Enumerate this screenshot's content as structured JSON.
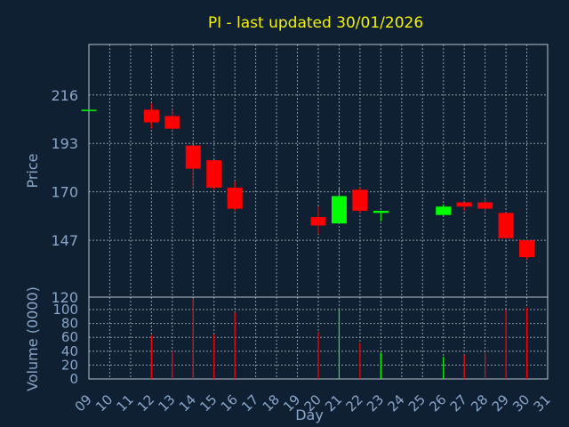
{
  "chart_data": {
    "type": "candlestick",
    "title": "PI - last updated 30/01/2026",
    "xlabel": "Day",
    "ylabel": "Price",
    "volume_label": "Volume (0000)",
    "x_ticks": [
      "09",
      "10",
      "11",
      "12",
      "13",
      "14",
      "15",
      "16",
      "17",
      "18",
      "19",
      "20",
      "21",
      "22",
      "23",
      "24",
      "25",
      "26",
      "27",
      "28",
      "29",
      "30",
      "31"
    ],
    "price_ticks": [
      147,
      170,
      193,
      216
    ],
    "price_tick_labels": [
      "147",
      "170",
      "193",
      "216"
    ],
    "price_axis_min_label": "120",
    "price_ylim": [
      120,
      240
    ],
    "volume_ticks": [
      0,
      20,
      40,
      60,
      80,
      100
    ],
    "volume_tick_labels": [
      "0",
      "20",
      "40",
      "60",
      "80",
      "100"
    ],
    "volume_ylim": [
      0,
      118
    ],
    "grid": true,
    "up_color": "#00ff00",
    "down_color": "#ff0000",
    "candles": [
      {
        "day": "09",
        "open": 209,
        "high": 209,
        "low": 209,
        "close": 209,
        "volume": 0
      },
      {
        "day": "12",
        "open": 209,
        "high": 212,
        "low": 200,
        "close": 203,
        "volume": 63
      },
      {
        "day": "13",
        "open": 206,
        "high": 209,
        "low": 199,
        "close": 200,
        "volume": 40
      },
      {
        "day": "14",
        "open": 192,
        "high": 192,
        "low": 172,
        "close": 181,
        "volume": 116
      },
      {
        "day": "15",
        "open": 185,
        "high": 185,
        "low": 171,
        "close": 172,
        "volume": 64
      },
      {
        "day": "16",
        "open": 172,
        "high": 175,
        "low": 161,
        "close": 162,
        "volume": 96
      },
      {
        "day": "20",
        "open": 158,
        "high": 163,
        "low": 150,
        "close": 154,
        "volume": 68
      },
      {
        "day": "21",
        "open": 155,
        "high": 172,
        "low": 155,
        "close": 168,
        "volume": 100
      },
      {
        "day": "22",
        "open": 171,
        "high": 172,
        "low": 160,
        "close": 161,
        "volume": 52
      },
      {
        "day": "23",
        "open": 160,
        "high": 161,
        "low": 156,
        "close": 161,
        "volume": 38
      },
      {
        "day": "26",
        "open": 159,
        "high": 164,
        "low": 159,
        "close": 163,
        "volume": 32
      },
      {
        "day": "27",
        "open": 165,
        "high": 165,
        "low": 161,
        "close": 163,
        "volume": 35
      },
      {
        "day": "28",
        "open": 165,
        "high": 167,
        "low": 160,
        "close": 162,
        "volume": 38
      },
      {
        "day": "29",
        "open": 160,
        "high": 160,
        "low": 148,
        "close": 148,
        "volume": 100
      },
      {
        "day": "30",
        "open": 147,
        "high": 147,
        "low": 138,
        "close": 139,
        "volume": 103
      }
    ]
  }
}
